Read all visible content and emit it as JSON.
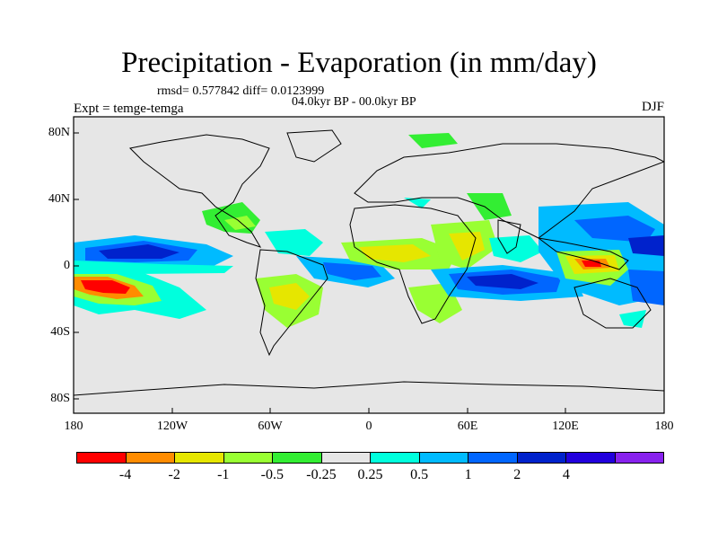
{
  "header": {
    "title": "Precipitation - Evaporation (in mm/day)",
    "stats": "rmsd= 0.577842 diff= 0.0123999",
    "period": "04.0kyr BP - 00.0kyr BP",
    "experiment": "Expt = temge-temga",
    "season": "DJF"
  },
  "axes": {
    "y_labels": [
      "80N",
      "40N",
      "0",
      "40S",
      "80S"
    ],
    "x_labels": [
      "180",
      "120W",
      "60W",
      "0",
      "60E",
      "120E",
      "180"
    ]
  },
  "colorbar": {
    "colors": [
      "#ff0000",
      "#ff8c00",
      "#e6e600",
      "#99ff33",
      "#33ee33",
      "#e6e6e6",
      "#00ffdd",
      "#00bbff",
      "#0066ff",
      "#0022cc",
      "#2200dd",
      "#8822ee"
    ],
    "labels": [
      "-4",
      "-2",
      "-1",
      "-0.5",
      "-0.25",
      "0.25",
      "0.5",
      "1",
      "2",
      "4"
    ]
  },
  "map_colors": {
    "background": "#e6e6e6",
    "coast": "#000000"
  }
}
